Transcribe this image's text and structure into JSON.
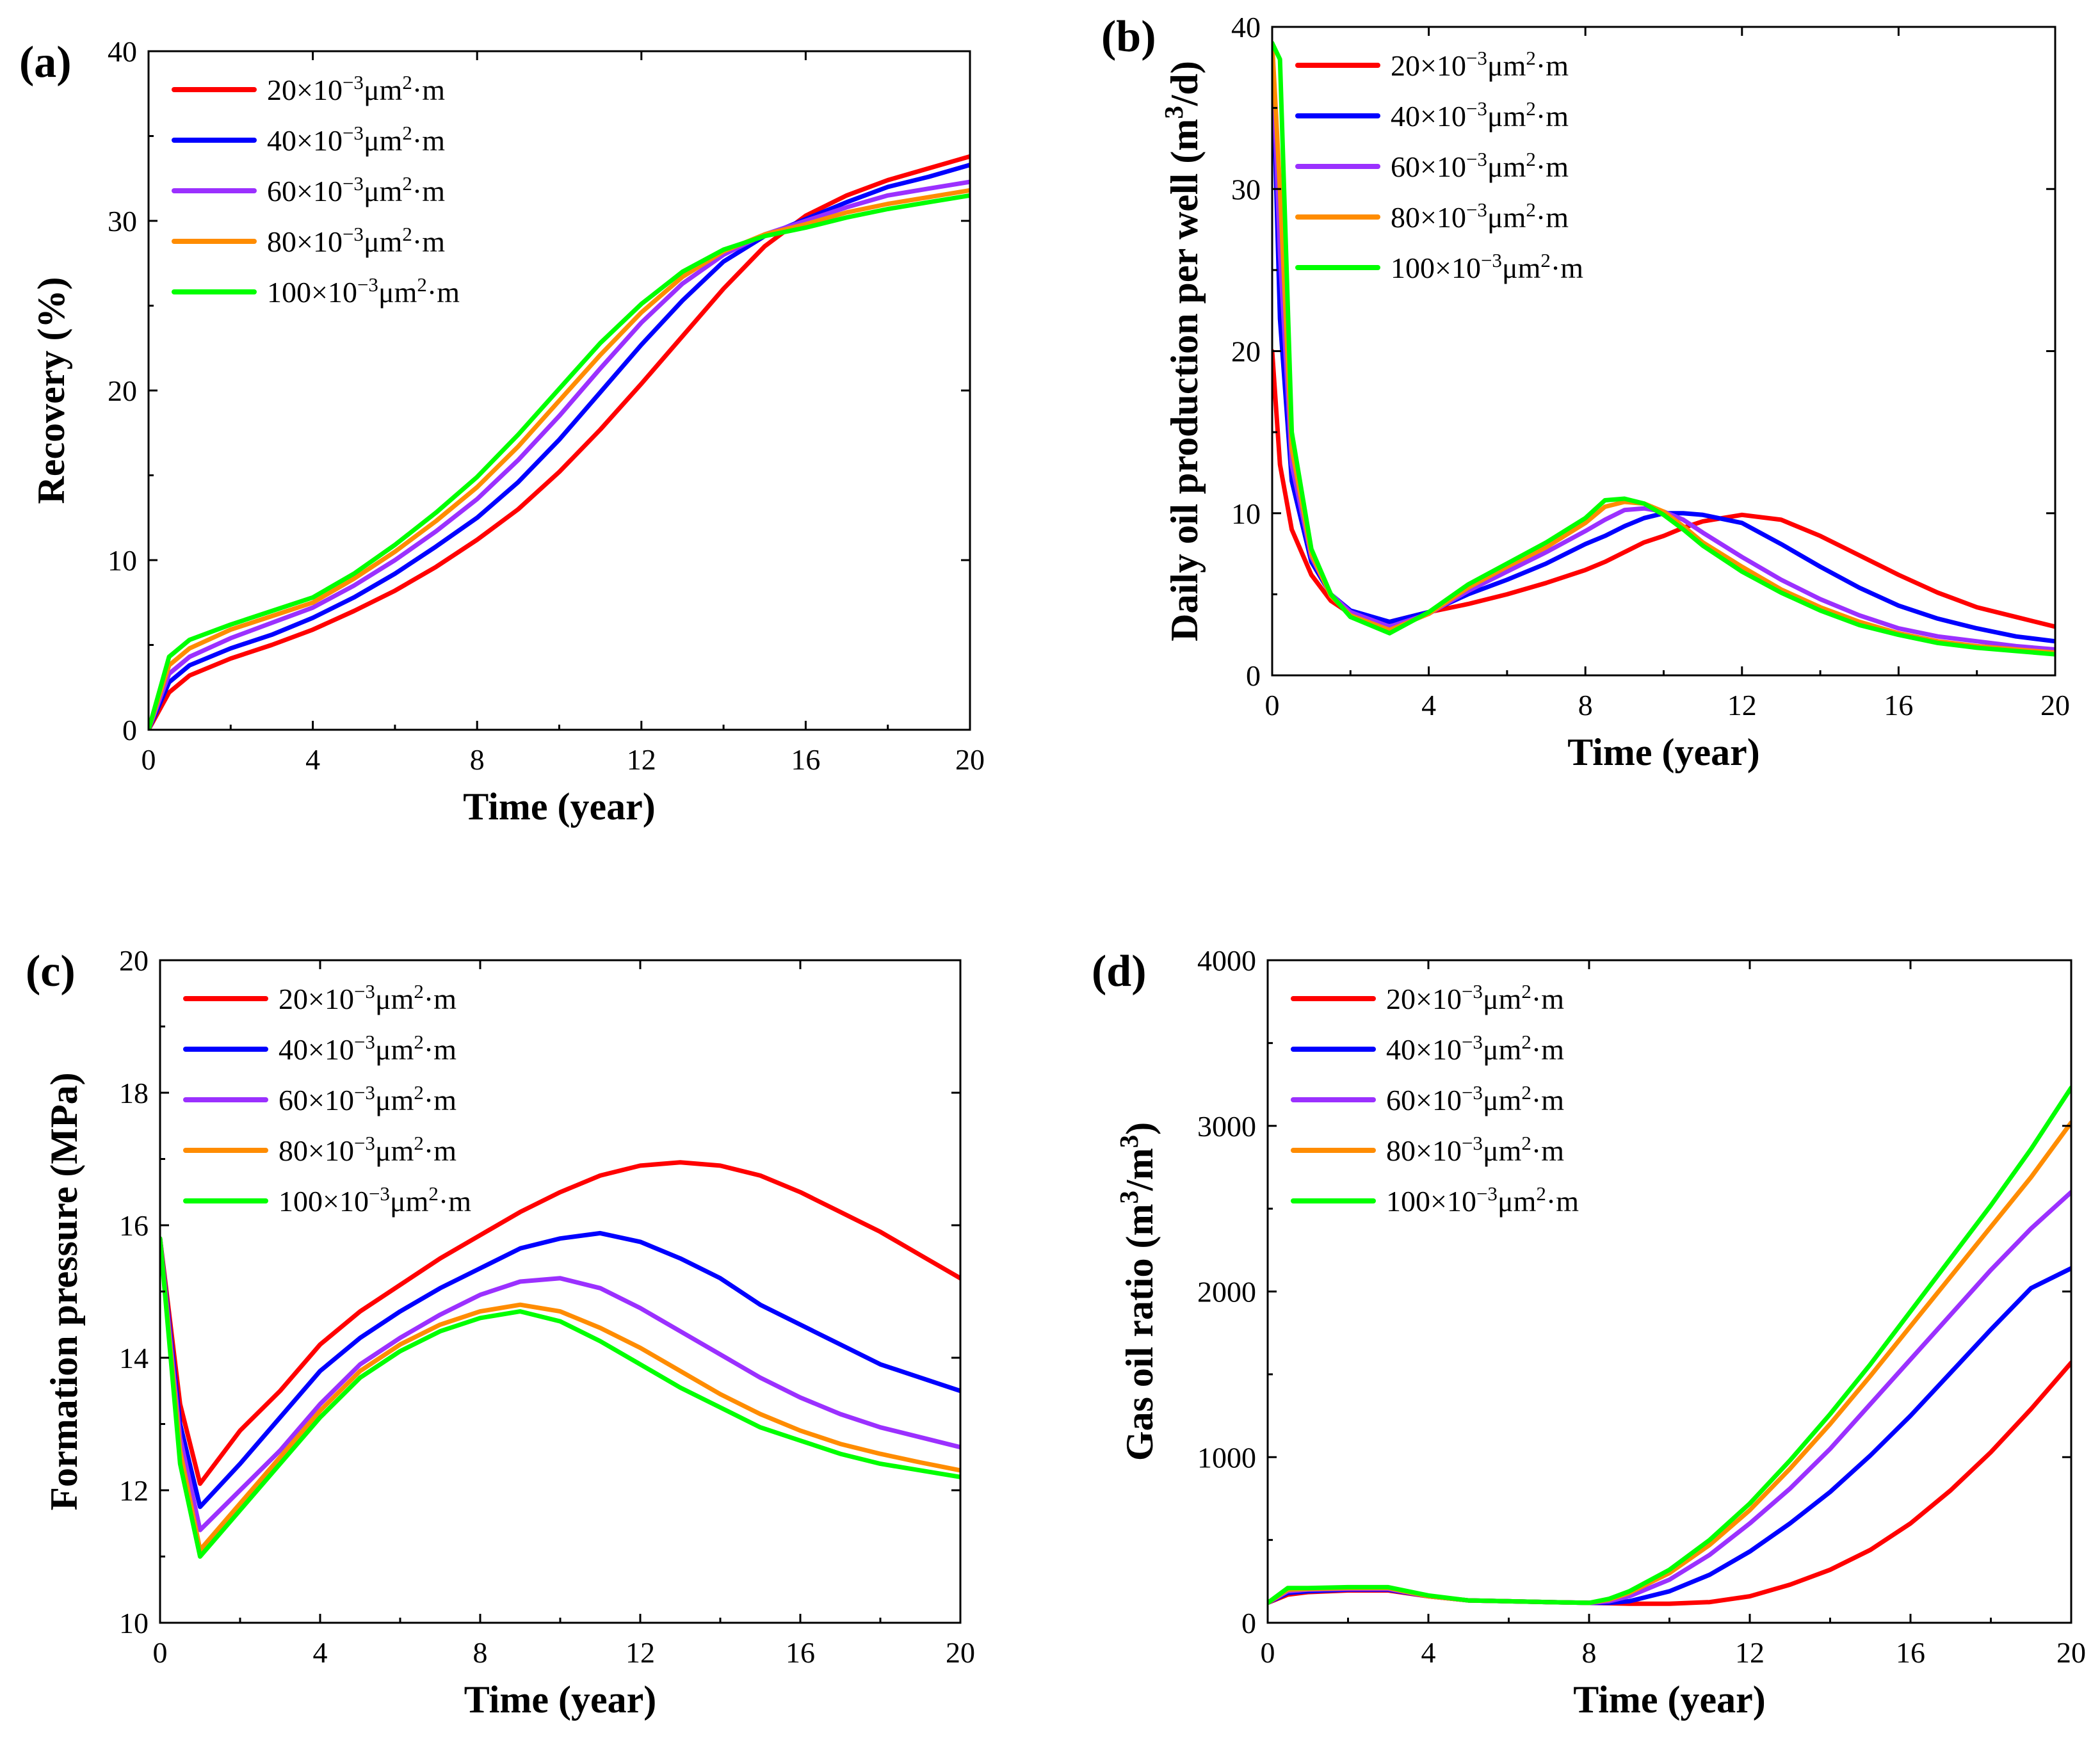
{
  "figure": {
    "background": "#ffffff"
  },
  "chart_data": [
    {
      "panel_label": "(a)",
      "type": "line",
      "title": "",
      "xlabel": "Time (year)",
      "ylabel": "Recovery (%)",
      "xlim": [
        0,
        20
      ],
      "ylim": [
        0,
        40
      ],
      "xticks": [
        0,
        4,
        8,
        12,
        16,
        20
      ],
      "yticks": [
        0,
        10,
        20,
        30,
        40
      ],
      "legend": "top-left",
      "grid": false,
      "x": [
        0,
        0.5,
        1,
        2,
        3,
        4,
        5,
        6,
        7,
        8,
        9,
        10,
        11,
        12,
        13,
        14,
        15,
        16,
        17,
        18,
        19,
        20
      ],
      "series": [
        {
          "name": "20×10⁻³μm²·m",
          "color": "#ff0000",
          "values": [
            0,
            2.2,
            3.2,
            4.2,
            5.0,
            5.9,
            7.0,
            8.2,
            9.6,
            11.2,
            13.0,
            15.2,
            17.7,
            20.4,
            23.2,
            26.0,
            28.5,
            30.3,
            31.5,
            32.4,
            33.1,
            33.8
          ]
        },
        {
          "name": "40×10⁻³μm²·m",
          "color": "#0000ff",
          "values": [
            0,
            2.8,
            3.8,
            4.8,
            5.6,
            6.6,
            7.8,
            9.2,
            10.8,
            12.5,
            14.6,
            17.1,
            19.9,
            22.7,
            25.3,
            27.6,
            29.1,
            30.1,
            31.1,
            32.0,
            32.6,
            33.3
          ]
        },
        {
          "name": "60×10⁻³μm²·m",
          "color": "#9b30ff",
          "values": [
            0,
            3.3,
            4.3,
            5.4,
            6.3,
            7.2,
            8.5,
            10.0,
            11.7,
            13.6,
            15.9,
            18.5,
            21.3,
            24.0,
            26.3,
            28.0,
            29.2,
            30.0,
            30.8,
            31.5,
            31.9,
            32.3
          ]
        },
        {
          "name": "80×10⁻³μm²·m",
          "color": "#ff8c00",
          "values": [
            0,
            3.8,
            4.8,
            5.9,
            6.7,
            7.5,
            8.9,
            10.5,
            12.3,
            14.3,
            16.7,
            19.4,
            22.1,
            24.6,
            26.7,
            28.2,
            29.2,
            29.8,
            30.5,
            31.0,
            31.4,
            31.8
          ]
        },
        {
          "name": "100×10⁻³μm²·m",
          "color": "#00ff00",
          "values": [
            0,
            4.3,
            5.3,
            6.2,
            7.0,
            7.8,
            9.2,
            10.9,
            12.8,
            14.9,
            17.4,
            20.1,
            22.8,
            25.1,
            27.0,
            28.3,
            29.1,
            29.6,
            30.2,
            30.7,
            31.1,
            31.5
          ]
        }
      ]
    },
    {
      "panel_label": "(b)",
      "type": "line",
      "title": "",
      "xlabel": "Time (year)",
      "ylabel": "Daily oil production per well (m³/d)",
      "xlim": [
        0,
        20
      ],
      "ylim": [
        0,
        40
      ],
      "xticks": [
        0,
        4,
        8,
        12,
        16,
        20
      ],
      "yticks": [
        0,
        10,
        20,
        30,
        40
      ],
      "legend": "top-left",
      "grid": false,
      "x": [
        0,
        0.2,
        0.5,
        1,
        1.5,
        2,
        3,
        4,
        5,
        6,
        7,
        8,
        8.5,
        9,
        9.5,
        10,
        10.5,
        11,
        12,
        13,
        14,
        15,
        16,
        17,
        18,
        19,
        20
      ],
      "series": [
        {
          "name": "20×10⁻³μm²·m",
          "color": "#ff0000",
          "values": [
            20,
            13,
            9,
            6.2,
            4.6,
            3.8,
            3.3,
            3.9,
            4.4,
            5.0,
            5.7,
            6.5,
            7.0,
            7.6,
            8.2,
            8.6,
            9.1,
            9.5,
            9.9,
            9.6,
            8.6,
            7.4,
            6.2,
            5.1,
            4.2,
            3.6,
            3.0
          ]
        },
        {
          "name": "40×10⁻³μm²·m",
          "color": "#0000ff",
          "values": [
            39,
            22,
            12,
            7,
            5.0,
            4.0,
            3.3,
            3.9,
            5.0,
            5.9,
            6.9,
            8.1,
            8.6,
            9.2,
            9.7,
            10.0,
            10.0,
            9.9,
            9.4,
            8.1,
            6.7,
            5.4,
            4.3,
            3.5,
            2.9,
            2.4,
            2.1
          ]
        },
        {
          "name": "60×10⁻³μm²·m",
          "color": "#9b30ff",
          "values": [
            39,
            26,
            13,
            7.3,
            5.0,
            3.9,
            3.0,
            3.8,
            5.2,
            6.4,
            7.6,
            8.9,
            9.6,
            10.2,
            10.3,
            10.1,
            9.6,
            8.8,
            7.3,
            5.9,
            4.7,
            3.7,
            2.9,
            2.4,
            2.1,
            1.8,
            1.6
          ]
        },
        {
          "name": "80×10⁻³μm²·m",
          "color": "#ff8c00",
          "values": [
            39,
            30,
            14,
            7.5,
            4.9,
            3.7,
            2.8,
            3.8,
            5.4,
            6.7,
            7.9,
            9.4,
            10.4,
            10.7,
            10.6,
            10.1,
            9.2,
            8.2,
            6.7,
            5.3,
            4.2,
            3.3,
            2.6,
            2.1,
            1.8,
            1.6,
            1.4
          ]
        },
        {
          "name": "100×10⁻³μm²·m",
          "color": "#00ff00",
          "values": [
            39,
            38,
            15,
            7.8,
            5.0,
            3.6,
            2.6,
            3.9,
            5.6,
            6.9,
            8.2,
            9.7,
            10.8,
            10.9,
            10.6,
            9.9,
            9.0,
            8.0,
            6.4,
            5.1,
            4.0,
            3.1,
            2.5,
            2.0,
            1.7,
            1.5,
            1.3
          ]
        }
      ]
    },
    {
      "panel_label": "(c)",
      "type": "line",
      "title": "",
      "xlabel": "Time (year)",
      "ylabel": "Formation pressure (MPa)",
      "xlim": [
        0,
        20
      ],
      "ylim": [
        10,
        20
      ],
      "xticks": [
        0,
        4,
        8,
        12,
        16,
        20
      ],
      "yticks": [
        10,
        12,
        14,
        16,
        18,
        20
      ],
      "legend": "top-left",
      "grid": false,
      "x": [
        0,
        0.5,
        1,
        2,
        3,
        4,
        5,
        6,
        7,
        8,
        9,
        10,
        11,
        12,
        13,
        14,
        15,
        16,
        17,
        18,
        19,
        20
      ],
      "series": [
        {
          "name": "20×10⁻³μm²·m",
          "color": "#ff0000",
          "values": [
            15.8,
            13.3,
            12.1,
            12.9,
            13.5,
            14.2,
            14.7,
            15.1,
            15.5,
            15.85,
            16.2,
            16.5,
            16.75,
            16.9,
            16.95,
            16.9,
            16.75,
            16.5,
            16.2,
            15.9,
            15.55,
            15.2
          ]
        },
        {
          "name": "40×10⁻³μm²·m",
          "color": "#0000ff",
          "values": [
            15.8,
            13.0,
            11.75,
            12.4,
            13.1,
            13.8,
            14.3,
            14.7,
            15.05,
            15.35,
            15.65,
            15.8,
            15.88,
            15.75,
            15.5,
            15.2,
            14.8,
            14.5,
            14.2,
            13.9,
            13.7,
            13.5
          ]
        },
        {
          "name": "60×10⁻³μm²·m",
          "color": "#9b30ff",
          "values": [
            15.8,
            12.8,
            11.4,
            12.0,
            12.6,
            13.3,
            13.9,
            14.3,
            14.65,
            14.95,
            15.15,
            15.2,
            15.05,
            14.75,
            14.4,
            14.05,
            13.7,
            13.4,
            13.15,
            12.95,
            12.8,
            12.65
          ]
        },
        {
          "name": "80×10⁻³μm²·m",
          "color": "#ff8c00",
          "values": [
            15.8,
            12.6,
            11.1,
            11.8,
            12.5,
            13.2,
            13.8,
            14.2,
            14.5,
            14.7,
            14.8,
            14.7,
            14.45,
            14.15,
            13.8,
            13.45,
            13.15,
            12.9,
            12.7,
            12.55,
            12.42,
            12.3
          ]
        },
        {
          "name": "100×10⁻³μm²·m",
          "color": "#00ff00",
          "values": [
            15.8,
            12.4,
            11.0,
            11.7,
            12.4,
            13.1,
            13.7,
            14.1,
            14.4,
            14.6,
            14.7,
            14.55,
            14.25,
            13.9,
            13.55,
            13.25,
            12.95,
            12.75,
            12.55,
            12.4,
            12.3,
            12.2
          ]
        }
      ]
    },
    {
      "panel_label": "(d)",
      "type": "line",
      "title": "",
      "xlabel": "Time (year)",
      "ylabel": "Gas oil ratio  (m³/m³)",
      "xlim": [
        0,
        20
      ],
      "ylim": [
        0,
        4000
      ],
      "xticks": [
        0,
        4,
        8,
        12,
        16,
        20
      ],
      "yticks": [
        0,
        1000,
        2000,
        3000,
        4000
      ],
      "legend": "top-left",
      "grid": false,
      "x": [
        0,
        0.5,
        1,
        2,
        3,
        4,
        5,
        6,
        7,
        8,
        8.5,
        9,
        10,
        11,
        12,
        13,
        14,
        15,
        16,
        17,
        18,
        19,
        20
      ],
      "series": [
        {
          "name": "20×10⁻³μm²·m",
          "color": "#ff0000",
          "values": [
            120,
            170,
            185,
            195,
            195,
            160,
            135,
            130,
            125,
            120,
            118,
            115,
            115,
            125,
            160,
            230,
            320,
            440,
            600,
            800,
            1030,
            1290,
            1570
          ]
        },
        {
          "name": "40×10⁻³μm²·m",
          "color": "#0000ff",
          "values": [
            120,
            180,
            190,
            200,
            200,
            160,
            135,
            130,
            125,
            120,
            120,
            130,
            190,
            290,
            430,
            600,
            790,
            1010,
            1250,
            1510,
            1770,
            2020,
            2140
          ]
        },
        {
          "name": "60×10⁻³μm²·m",
          "color": "#9b30ff",
          "values": [
            120,
            190,
            200,
            205,
            205,
            160,
            135,
            130,
            125,
            120,
            130,
            160,
            260,
            410,
            600,
            810,
            1050,
            1320,
            1590,
            1860,
            2130,
            2380,
            2600
          ]
        },
        {
          "name": "80×10⁻³μm²·m",
          "color": "#ff8c00",
          "values": [
            120,
            200,
            205,
            210,
            210,
            160,
            135,
            130,
            125,
            120,
            140,
            180,
            300,
            470,
            680,
            930,
            1200,
            1490,
            1790,
            2090,
            2390,
            2690,
            3020
          ]
        },
        {
          "name": "100×10⁻³μm²·m",
          "color": "#00ff00",
          "values": [
            120,
            210,
            210,
            215,
            215,
            165,
            135,
            130,
            125,
            120,
            145,
            190,
            320,
            500,
            720,
            980,
            1260,
            1560,
            1880,
            2200,
            2520,
            2860,
            3230
          ]
        }
      ]
    }
  ]
}
